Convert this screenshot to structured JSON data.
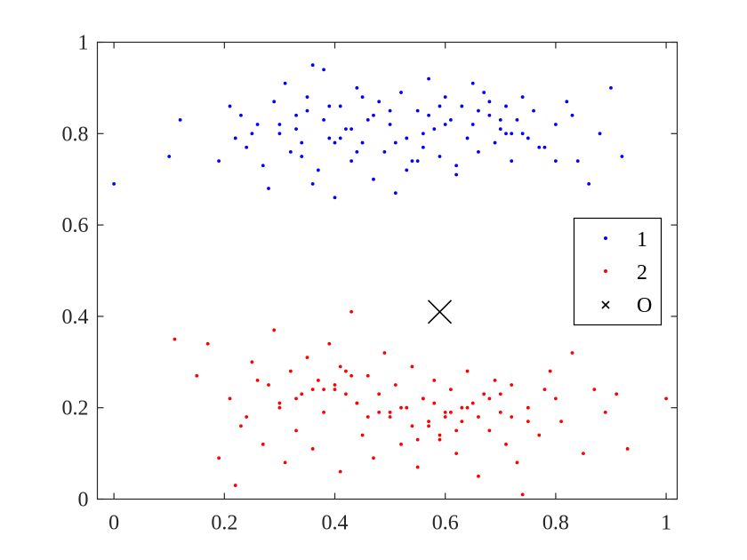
{
  "chart_data": {
    "type": "scatter",
    "title": "",
    "xlabel": "",
    "ylabel": "",
    "xlim": [
      -0.03,
      1.02
    ],
    "ylim": [
      0,
      1
    ],
    "xticks": [
      0,
      0.2,
      0.4,
      0.6,
      0.8,
      1
    ],
    "xtick_labels": [
      "0",
      "0.2",
      "0.4",
      "0.6",
      "0.8",
      "1"
    ],
    "yticks": [
      0,
      0.2,
      0.4,
      0.6,
      0.8,
      1
    ],
    "ytick_labels": [
      "0",
      "0.2",
      "0.4",
      "0.6",
      "0.8",
      "1"
    ],
    "grid": false,
    "legend_position": "right",
    "series": [
      {
        "name": "1",
        "color": "#0000ff",
        "marker": "dot",
        "x": [
          0.0,
          0.1,
          0.12,
          0.19,
          0.22,
          0.23,
          0.24,
          0.26,
          0.28,
          0.29,
          0.3,
          0.31,
          0.32,
          0.33,
          0.34,
          0.35,
          0.36,
          0.37,
          0.38,
          0.39,
          0.4,
          0.41,
          0.42,
          0.43,
          0.44,
          0.45,
          0.46,
          0.47,
          0.48,
          0.49,
          0.5,
          0.51,
          0.52,
          0.53,
          0.54,
          0.55,
          0.56,
          0.57,
          0.58,
          0.59,
          0.6,
          0.61,
          0.62,
          0.63,
          0.64,
          0.65,
          0.66,
          0.67,
          0.68,
          0.69,
          0.7,
          0.71,
          0.72,
          0.73,
          0.74,
          0.75,
          0.76,
          0.78,
          0.8,
          0.82,
          0.84,
          0.86,
          0.88,
          0.9,
          0.92,
          0.21,
          0.27,
          0.33,
          0.38,
          0.44,
          0.5,
          0.56,
          0.62,
          0.68,
          0.74,
          0.8,
          0.36,
          0.41,
          0.47,
          0.53,
          0.59,
          0.65,
          0.71,
          0.77,
          0.83,
          0.25,
          0.3,
          0.35,
          0.4,
          0.45,
          0.55,
          0.6,
          0.66,
          0.7,
          0.72,
          0.34,
          0.39,
          0.43,
          0.51,
          0.57
        ],
        "y": [
          0.69,
          0.75,
          0.83,
          0.74,
          0.79,
          0.84,
          0.77,
          0.82,
          0.68,
          0.87,
          0.8,
          0.91,
          0.76,
          0.84,
          0.78,
          0.88,
          0.95,
          0.72,
          0.83,
          0.79,
          0.66,
          0.86,
          0.81,
          0.74,
          0.9,
          0.78,
          0.83,
          0.7,
          0.87,
          0.76,
          0.82,
          0.67,
          0.89,
          0.79,
          0.74,
          0.85,
          0.77,
          0.92,
          0.81,
          0.75,
          0.88,
          0.83,
          0.71,
          0.86,
          0.79,
          0.82,
          0.76,
          0.89,
          0.84,
          0.78,
          0.81,
          0.86,
          0.74,
          0.83,
          0.88,
          0.79,
          0.85,
          0.77,
          0.82,
          0.87,
          0.74,
          0.69,
          0.8,
          0.9,
          0.75,
          0.86,
          0.73,
          0.81,
          0.94,
          0.76,
          0.85,
          0.8,
          0.73,
          0.87,
          0.8,
          0.74,
          0.69,
          0.79,
          0.84,
          0.72,
          0.86,
          0.91,
          0.8,
          0.77,
          0.84,
          0.8,
          0.82,
          0.85,
          0.78,
          0.88,
          0.74,
          0.82,
          0.85,
          0.83,
          0.8,
          0.75,
          0.86,
          0.81,
          0.78,
          0.84
        ]
      },
      {
        "name": "2",
        "color": "#ff0000",
        "marker": "dot",
        "x": [
          0.11,
          0.15,
          0.17,
          0.19,
          0.21,
          0.22,
          0.24,
          0.25,
          0.27,
          0.28,
          0.29,
          0.3,
          0.31,
          0.32,
          0.33,
          0.34,
          0.35,
          0.36,
          0.37,
          0.38,
          0.39,
          0.4,
          0.41,
          0.42,
          0.43,
          0.44,
          0.45,
          0.46,
          0.47,
          0.48,
          0.49,
          0.5,
          0.51,
          0.52,
          0.53,
          0.54,
          0.55,
          0.56,
          0.57,
          0.58,
          0.59,
          0.6,
          0.61,
          0.62,
          0.63,
          0.64,
          0.65,
          0.66,
          0.67,
          0.68,
          0.69,
          0.7,
          0.71,
          0.72,
          0.73,
          0.74,
          0.75,
          0.77,
          0.79,
          0.81,
          0.83,
          0.85,
          0.87,
          0.89,
          0.91,
          0.93,
          1.0,
          0.23,
          0.26,
          0.33,
          0.38,
          0.41,
          0.43,
          0.48,
          0.55,
          0.58,
          0.6,
          0.61,
          0.63,
          0.66,
          0.7,
          0.75,
          0.8,
          0.36,
          0.44,
          0.52,
          0.57,
          0.62,
          0.68,
          0.3,
          0.4,
          0.46,
          0.54,
          0.59,
          0.64,
          0.72,
          0.78,
          0.42,
          0.5,
          0.56
        ],
        "y": [
          0.35,
          0.27,
          0.34,
          0.09,
          0.22,
          0.03,
          0.18,
          0.3,
          0.12,
          0.25,
          0.37,
          0.2,
          0.08,
          0.28,
          0.15,
          0.23,
          0.31,
          0.11,
          0.26,
          0.19,
          0.34,
          0.24,
          0.06,
          0.28,
          0.41,
          0.21,
          0.14,
          0.27,
          0.09,
          0.23,
          0.32,
          0.18,
          0.25,
          0.12,
          0.2,
          0.29,
          0.07,
          0.22,
          0.16,
          0.26,
          0.13,
          0.19,
          0.24,
          0.1,
          0.17,
          0.28,
          0.21,
          0.05,
          0.23,
          0.15,
          0.26,
          0.19,
          0.12,
          0.25,
          0.08,
          0.01,
          0.2,
          0.14,
          0.28,
          0.17,
          0.32,
          0.1,
          0.24,
          0.19,
          0.23,
          0.11,
          0.22,
          0.16,
          0.26,
          0.22,
          0.24,
          0.29,
          0.27,
          0.19,
          0.13,
          0.21,
          0.18,
          0.19,
          0.2,
          0.18,
          0.23,
          0.17,
          0.22,
          0.24,
          0.21,
          0.2,
          0.17,
          0.15,
          0.22,
          0.21,
          0.25,
          0.18,
          0.16,
          0.14,
          0.2,
          0.18,
          0.24,
          0.23,
          0.19,
          0.22
        ]
      },
      {
        "name": "O",
        "color": "#000000",
        "marker": "x",
        "x": [
          0.59
        ],
        "y": [
          0.41
        ]
      }
    ]
  }
}
